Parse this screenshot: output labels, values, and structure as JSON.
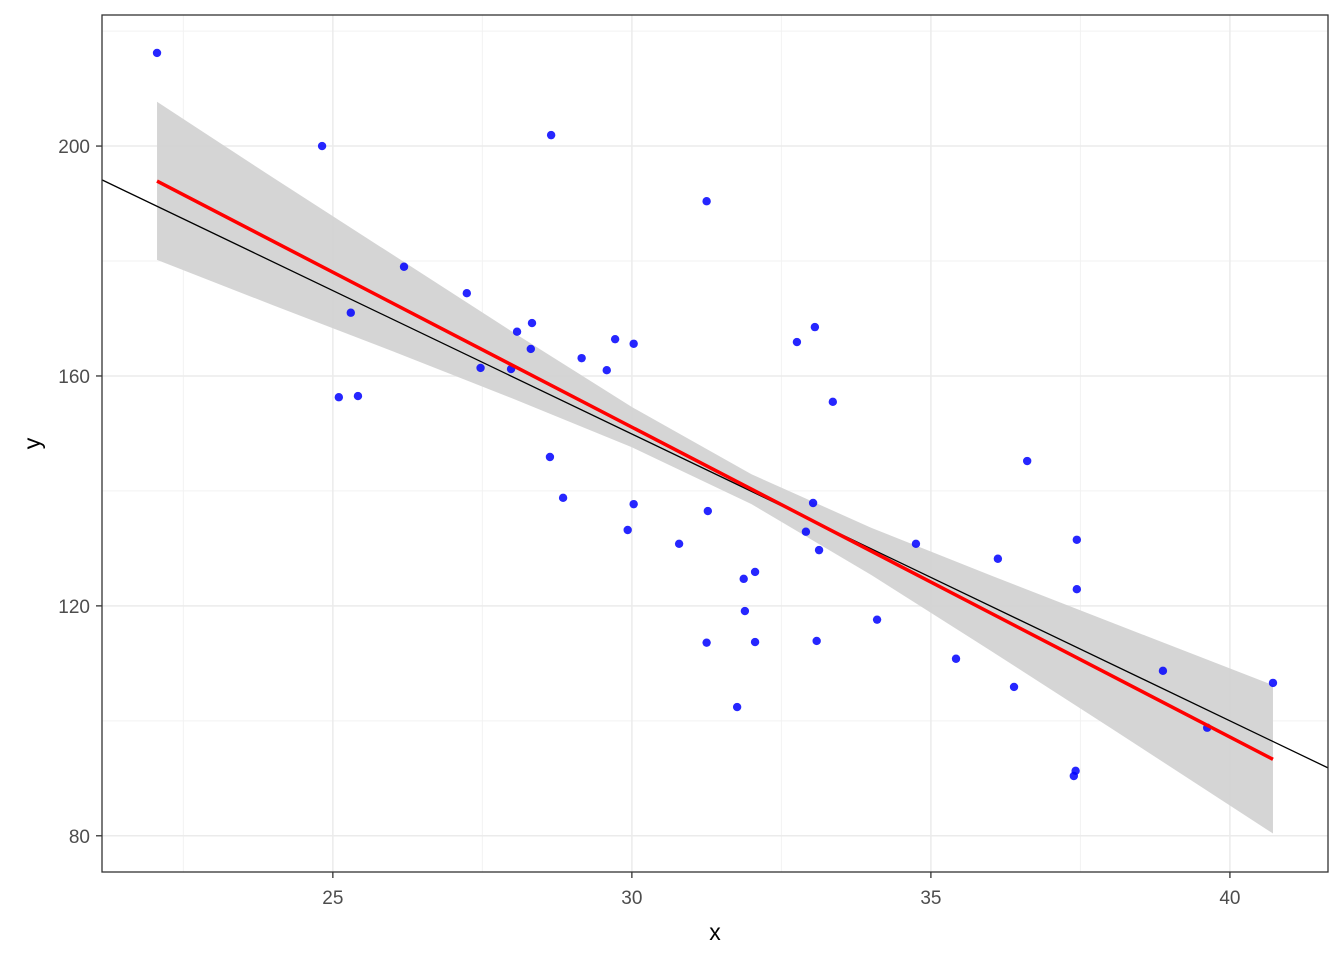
{
  "chart_data": {
    "type": "scatter",
    "title": "",
    "xlabel": "x",
    "ylabel": "y",
    "xlim": [
      21.14,
      41.64
    ],
    "ylim": [
      73.7,
      222.8
    ],
    "xticks": [
      25,
      30,
      35,
      40
    ],
    "yticks": [
      80,
      120,
      160,
      200
    ],
    "xtick_labels": [
      "25",
      "30",
      "35",
      "40"
    ],
    "ytick_labels": [
      "80",
      "120",
      "160",
      "200"
    ],
    "x_minor": [
      22.5,
      27.5,
      32.5,
      37.5
    ],
    "y_minor": [
      100,
      140,
      180,
      220
    ],
    "grid": true,
    "points": {
      "color": "#0000ff",
      "x": [
        22.06,
        24.82,
        28.65,
        31.25,
        26.19,
        27.24,
        25.3,
        28.33,
        33.06,
        28.08,
        29.72,
        30.03,
        32.76,
        28.31,
        29.16,
        27.47,
        27.98,
        29.58,
        25.1,
        25.42,
        33.36,
        28.63,
        36.61,
        28.85,
        30.03,
        33.03,
        31.27,
        29.93,
        32.91,
        37.44,
        30.79,
        34.75,
        33.13,
        36.12,
        32.06,
        31.87,
        37.44,
        31.89,
        34.1,
        31.25,
        32.06,
        33.09,
        35.42,
        38.88,
        40.72,
        36.39,
        31.76,
        39.62,
        37.42,
        37.39
      ],
      "y": [
        216.2,
        200.0,
        201.9,
        190.4,
        179.0,
        174.4,
        171.0,
        169.2,
        168.5,
        167.7,
        166.4,
        165.6,
        165.9,
        164.7,
        163.1,
        161.4,
        161.2,
        161.0,
        156.3,
        156.5,
        155.5,
        145.9,
        145.2,
        138.8,
        137.7,
        137.9,
        136.5,
        133.2,
        132.9,
        131.5,
        130.8,
        130.8,
        129.7,
        128.2,
        125.9,
        124.7,
        122.9,
        119.1,
        117.6,
        113.6,
        113.7,
        113.9,
        110.8,
        108.7,
        106.6,
        105.9,
        102.4,
        98.8,
        91.3,
        90.4
      ]
    },
    "smooth_line": {
      "color": "#ff0000",
      "x": [
        22.06,
        40.72
      ],
      "y": [
        193.9,
        93.3
      ]
    },
    "confidence_band": {
      "color": "#d3d3d3",
      "x": [
        22.06,
        24,
        26,
        28,
        30,
        32,
        34,
        36,
        38,
        40.72
      ],
      "lower": [
        180.2,
        172.3,
        164.3,
        156.1,
        147.6,
        137.7,
        125.4,
        112.2,
        98.8,
        80.4
      ],
      "upper": [
        207.7,
        194.5,
        181.1,
        167.7,
        154.6,
        142.9,
        133.6,
        125.3,
        117.2,
        106.2
      ]
    },
    "reference_line": {
      "color": "#000000",
      "intercept": 299.6,
      "slope": -4.99
    }
  }
}
